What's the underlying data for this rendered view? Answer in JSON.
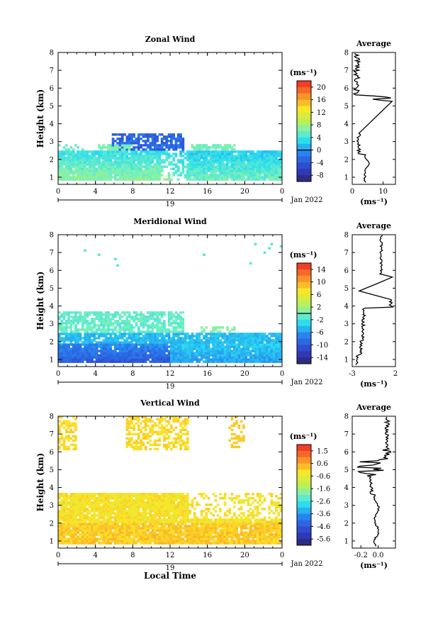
{
  "chart_data": [
    {
      "type": "heatmap",
      "title": "Zonal Wind",
      "ylabel": "Height (km)",
      "xlabel": "",
      "xlim": [
        0,
        24
      ],
      "ylim": [
        0.6,
        8
      ],
      "x_ticks": [
        "0",
        "4",
        "8",
        "12",
        "16",
        "20",
        "0"
      ],
      "y_ticks": [
        "1",
        "2",
        "3",
        "4",
        "5",
        "6",
        "7",
        "8"
      ],
      "date_day": "19",
      "date_month": "Jan 2022",
      "colorbar": {
        "unit": "(ms⁻¹)",
        "min": -10,
        "max": 22,
        "ticks": [
          "20",
          "16",
          "12",
          "8",
          "4",
          "0",
          "-4",
          "-8"
        ],
        "zero_line": 0
      },
      "average": {
        "title": "Average",
        "unit": "(ms⁻¹)",
        "xlim": [
          0,
          14
        ],
        "x_ticks": [
          "0",
          "10"
        ]
      }
    },
    {
      "type": "heatmap",
      "title": "Meridional Wind",
      "ylabel": "Height (km)",
      "xlabel": "",
      "xlim": [
        0,
        24
      ],
      "ylim": [
        0.6,
        8
      ],
      "x_ticks": [
        "0",
        "4",
        "8",
        "12",
        "16",
        "20",
        "0"
      ],
      "y_ticks": [
        "1",
        "2",
        "3",
        "4",
        "5",
        "6",
        "7",
        "8"
      ],
      "date_day": "19",
      "date_month": "Jan 2022",
      "colorbar": {
        "unit": "(ms⁻¹)",
        "min": -16,
        "max": 16,
        "ticks": [
          "14",
          "10",
          "6",
          "2",
          "-2",
          "-6",
          "-10",
          "-14"
        ],
        "zero_line": 0
      },
      "average": {
        "title": "Average",
        "unit": "(ms⁻¹)",
        "xlim": [
          -3,
          2
        ],
        "x_ticks": [
          "-3",
          "2"
        ]
      }
    },
    {
      "type": "heatmap",
      "title": "Vertical Wind",
      "ylabel": "Height (km)",
      "xlabel": "Local Time",
      "xlim": [
        0,
        24
      ],
      "ylim": [
        0.6,
        8
      ],
      "x_ticks": [
        "0",
        "4",
        "8",
        "12",
        "16",
        "20",
        "0"
      ],
      "y_ticks": [
        "1",
        "2",
        "3",
        "4",
        "5",
        "6",
        "7",
        "8"
      ],
      "date_day": "19",
      "date_month": "Jan 2022",
      "colorbar": {
        "unit": "(ms⁻¹)",
        "min": -6,
        "max": 2,
        "ticks": [
          "1.5",
          "0.6",
          "-0.6",
          "-1.6",
          "-2.6",
          "-3.6",
          "-4.6",
          "-5.6"
        ]
      },
      "average": {
        "title": "Average",
        "unit": "(ms⁻¹)",
        "xlim": [
          -0.3,
          0.2
        ],
        "x_ticks": [
          "-0.2",
          "0.0"
        ]
      }
    }
  ]
}
